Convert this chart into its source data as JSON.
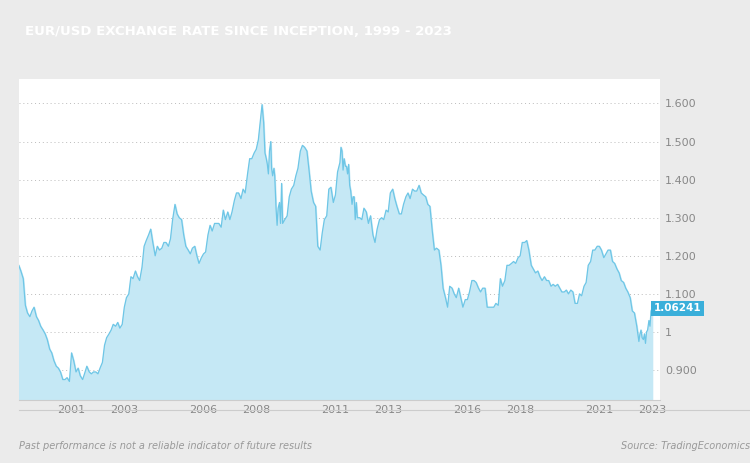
{
  "title": "EUR/USD EXCHANGE RATE SINCE INCEPTION, 1999 - 2023",
  "title_bg_color": "#8B6148",
  "title_text_color": "#FFFFFF",
  "last_value": "1.06241",
  "last_value_bg": "#3AAFDA",
  "last_value_text_color": "#FFFFFF",
  "line_color": "#6EC6E6",
  "fill_color": "#C5E8F5",
  "background_color": "#EBEBEB",
  "plot_bg_color": "#FFFFFF",
  "grid_color": "#BBBBBB",
  "tick_color": "#888888",
  "ylim": [
    0.82,
    1.665
  ],
  "yticks": [
    0.9,
    1.0,
    1.1,
    1.2,
    1.3,
    1.4,
    1.5,
    1.6
  ],
  "ytick_labels": [
    "0.900",
    "1",
    "1.100",
    "1.200",
    "1.300",
    "1.400",
    "1.500",
    "1.600"
  ],
  "source_text": "Source: TradingEconomics",
  "disclaimer_text": "Past performance is not a reliable indicator of future results",
  "x_tick_years": [
    2001,
    2003,
    2006,
    2008,
    2011,
    2013,
    2016,
    2018,
    2021,
    2023
  ],
  "data": [
    [
      1999.0,
      1.175
    ],
    [
      1999.08,
      1.16
    ],
    [
      1999.17,
      1.14
    ],
    [
      1999.25,
      1.07
    ],
    [
      1999.33,
      1.05
    ],
    [
      1999.42,
      1.04
    ],
    [
      1999.5,
      1.055
    ],
    [
      1999.58,
      1.065
    ],
    [
      1999.67,
      1.04
    ],
    [
      1999.75,
      1.03
    ],
    [
      1999.83,
      1.015
    ],
    [
      1999.92,
      1.005
    ],
    [
      2000.0,
      0.995
    ],
    [
      2000.08,
      0.98
    ],
    [
      2000.17,
      0.955
    ],
    [
      2000.25,
      0.945
    ],
    [
      2000.33,
      0.925
    ],
    [
      2000.42,
      0.91
    ],
    [
      2000.5,
      0.905
    ],
    [
      2000.58,
      0.895
    ],
    [
      2000.67,
      0.875
    ],
    [
      2000.75,
      0.875
    ],
    [
      2000.83,
      0.88
    ],
    [
      2000.92,
      0.87
    ],
    [
      2001.0,
      0.945
    ],
    [
      2001.08,
      0.925
    ],
    [
      2001.17,
      0.895
    ],
    [
      2001.25,
      0.905
    ],
    [
      2001.33,
      0.885
    ],
    [
      2001.42,
      0.875
    ],
    [
      2001.5,
      0.892
    ],
    [
      2001.58,
      0.91
    ],
    [
      2001.67,
      0.895
    ],
    [
      2001.75,
      0.89
    ],
    [
      2001.83,
      0.895
    ],
    [
      2001.92,
      0.895
    ],
    [
      2002.0,
      0.89
    ],
    [
      2002.08,
      0.905
    ],
    [
      2002.17,
      0.92
    ],
    [
      2002.25,
      0.965
    ],
    [
      2002.33,
      0.985
    ],
    [
      2002.42,
      0.995
    ],
    [
      2002.5,
      1.005
    ],
    [
      2002.58,
      1.02
    ],
    [
      2002.67,
      1.015
    ],
    [
      2002.75,
      1.025
    ],
    [
      2002.83,
      1.01
    ],
    [
      2002.92,
      1.02
    ],
    [
      2003.0,
      1.065
    ],
    [
      2003.08,
      1.09
    ],
    [
      2003.17,
      1.1
    ],
    [
      2003.25,
      1.145
    ],
    [
      2003.33,
      1.14
    ],
    [
      2003.42,
      1.16
    ],
    [
      2003.5,
      1.145
    ],
    [
      2003.58,
      1.135
    ],
    [
      2003.67,
      1.17
    ],
    [
      2003.75,
      1.225
    ],
    [
      2003.83,
      1.24
    ],
    [
      2003.92,
      1.255
    ],
    [
      2004.0,
      1.27
    ],
    [
      2004.08,
      1.235
    ],
    [
      2004.17,
      1.2
    ],
    [
      2004.25,
      1.225
    ],
    [
      2004.33,
      1.215
    ],
    [
      2004.42,
      1.22
    ],
    [
      2004.5,
      1.235
    ],
    [
      2004.58,
      1.235
    ],
    [
      2004.67,
      1.225
    ],
    [
      2004.75,
      1.245
    ],
    [
      2004.83,
      1.295
    ],
    [
      2004.92,
      1.335
    ],
    [
      2005.0,
      1.31
    ],
    [
      2005.08,
      1.3
    ],
    [
      2005.17,
      1.295
    ],
    [
      2005.25,
      1.255
    ],
    [
      2005.33,
      1.225
    ],
    [
      2005.42,
      1.215
    ],
    [
      2005.5,
      1.205
    ],
    [
      2005.58,
      1.22
    ],
    [
      2005.67,
      1.225
    ],
    [
      2005.75,
      1.2
    ],
    [
      2005.83,
      1.18
    ],
    [
      2005.92,
      1.195
    ],
    [
      2006.0,
      1.205
    ],
    [
      2006.08,
      1.21
    ],
    [
      2006.17,
      1.255
    ],
    [
      2006.25,
      1.28
    ],
    [
      2006.33,
      1.265
    ],
    [
      2006.42,
      1.285
    ],
    [
      2006.5,
      1.285
    ],
    [
      2006.58,
      1.285
    ],
    [
      2006.67,
      1.275
    ],
    [
      2006.75,
      1.32
    ],
    [
      2006.83,
      1.295
    ],
    [
      2006.92,
      1.315
    ],
    [
      2007.0,
      1.295
    ],
    [
      2007.08,
      1.315
    ],
    [
      2007.17,
      1.345
    ],
    [
      2007.25,
      1.365
    ],
    [
      2007.33,
      1.365
    ],
    [
      2007.42,
      1.35
    ],
    [
      2007.5,
      1.375
    ],
    [
      2007.58,
      1.365
    ],
    [
      2007.67,
      1.415
    ],
    [
      2007.75,
      1.455
    ],
    [
      2007.83,
      1.455
    ],
    [
      2007.92,
      1.47
    ],
    [
      2008.0,
      1.48
    ],
    [
      2008.08,
      1.505
    ],
    [
      2008.17,
      1.565
    ],
    [
      2008.22,
      1.597
    ],
    [
      2008.25,
      1.575
    ],
    [
      2008.28,
      1.55
    ],
    [
      2008.33,
      1.47
    ],
    [
      2008.38,
      1.455
    ],
    [
      2008.42,
      1.44
    ],
    [
      2008.46,
      1.415
    ],
    [
      2008.5,
      1.475
    ],
    [
      2008.55,
      1.5
    ],
    [
      2008.58,
      1.43
    ],
    [
      2008.62,
      1.41
    ],
    [
      2008.67,
      1.43
    ],
    [
      2008.7,
      1.41
    ],
    [
      2008.75,
      1.325
    ],
    [
      2008.79,
      1.28
    ],
    [
      2008.83,
      1.325
    ],
    [
      2008.88,
      1.34
    ],
    [
      2008.92,
      1.285
    ],
    [
      2008.96,
      1.39
    ],
    [
      2009.0,
      1.285
    ],
    [
      2009.08,
      1.295
    ],
    [
      2009.17,
      1.305
    ],
    [
      2009.25,
      1.355
    ],
    [
      2009.33,
      1.375
    ],
    [
      2009.42,
      1.385
    ],
    [
      2009.5,
      1.41
    ],
    [
      2009.58,
      1.43
    ],
    [
      2009.67,
      1.475
    ],
    [
      2009.75,
      1.49
    ],
    [
      2009.83,
      1.485
    ],
    [
      2009.92,
      1.475
    ],
    [
      2010.0,
      1.425
    ],
    [
      2010.08,
      1.37
    ],
    [
      2010.17,
      1.34
    ],
    [
      2010.25,
      1.33
    ],
    [
      2010.33,
      1.225
    ],
    [
      2010.42,
      1.215
    ],
    [
      2010.5,
      1.26
    ],
    [
      2010.58,
      1.295
    ],
    [
      2010.67,
      1.305
    ],
    [
      2010.75,
      1.375
    ],
    [
      2010.83,
      1.38
    ],
    [
      2010.92,
      1.34
    ],
    [
      2011.0,
      1.36
    ],
    [
      2011.08,
      1.42
    ],
    [
      2011.17,
      1.445
    ],
    [
      2011.21,
      1.485
    ],
    [
      2011.25,
      1.475
    ],
    [
      2011.29,
      1.425
    ],
    [
      2011.33,
      1.455
    ],
    [
      2011.38,
      1.435
    ],
    [
      2011.42,
      1.435
    ],
    [
      2011.46,
      1.415
    ],
    [
      2011.5,
      1.44
    ],
    [
      2011.54,
      1.385
    ],
    [
      2011.58,
      1.37
    ],
    [
      2011.63,
      1.335
    ],
    [
      2011.67,
      1.355
    ],
    [
      2011.71,
      1.355
    ],
    [
      2011.75,
      1.295
    ],
    [
      2011.79,
      1.34
    ],
    [
      2011.83,
      1.3
    ],
    [
      2011.92,
      1.3
    ],
    [
      2012.0,
      1.295
    ],
    [
      2012.08,
      1.325
    ],
    [
      2012.17,
      1.315
    ],
    [
      2012.25,
      1.285
    ],
    [
      2012.33,
      1.305
    ],
    [
      2012.42,
      1.255
    ],
    [
      2012.5,
      1.235
    ],
    [
      2012.58,
      1.27
    ],
    [
      2012.67,
      1.295
    ],
    [
      2012.75,
      1.3
    ],
    [
      2012.83,
      1.295
    ],
    [
      2012.92,
      1.32
    ],
    [
      2013.0,
      1.315
    ],
    [
      2013.08,
      1.365
    ],
    [
      2013.17,
      1.375
    ],
    [
      2013.25,
      1.35
    ],
    [
      2013.33,
      1.33
    ],
    [
      2013.42,
      1.31
    ],
    [
      2013.5,
      1.31
    ],
    [
      2013.58,
      1.335
    ],
    [
      2013.67,
      1.355
    ],
    [
      2013.75,
      1.365
    ],
    [
      2013.83,
      1.35
    ],
    [
      2013.92,
      1.375
    ],
    [
      2014.0,
      1.37
    ],
    [
      2014.08,
      1.37
    ],
    [
      2014.17,
      1.385
    ],
    [
      2014.25,
      1.365
    ],
    [
      2014.33,
      1.36
    ],
    [
      2014.42,
      1.355
    ],
    [
      2014.5,
      1.335
    ],
    [
      2014.58,
      1.33
    ],
    [
      2014.67,
      1.265
    ],
    [
      2014.75,
      1.215
    ],
    [
      2014.83,
      1.22
    ],
    [
      2014.92,
      1.215
    ],
    [
      2015.0,
      1.175
    ],
    [
      2015.08,
      1.115
    ],
    [
      2015.17,
      1.09
    ],
    [
      2015.25,
      1.065
    ],
    [
      2015.33,
      1.12
    ],
    [
      2015.42,
      1.115
    ],
    [
      2015.5,
      1.1
    ],
    [
      2015.58,
      1.09
    ],
    [
      2015.67,
      1.115
    ],
    [
      2015.75,
      1.09
    ],
    [
      2015.83,
      1.065
    ],
    [
      2015.92,
      1.085
    ],
    [
      2016.0,
      1.085
    ],
    [
      2016.08,
      1.105
    ],
    [
      2016.17,
      1.135
    ],
    [
      2016.25,
      1.135
    ],
    [
      2016.33,
      1.13
    ],
    [
      2016.42,
      1.115
    ],
    [
      2016.5,
      1.105
    ],
    [
      2016.58,
      1.115
    ],
    [
      2016.67,
      1.115
    ],
    [
      2016.75,
      1.065
    ],
    [
      2016.83,
      1.065
    ],
    [
      2016.92,
      1.065
    ],
    [
      2017.0,
      1.065
    ],
    [
      2017.08,
      1.075
    ],
    [
      2017.17,
      1.07
    ],
    [
      2017.25,
      1.14
    ],
    [
      2017.33,
      1.12
    ],
    [
      2017.42,
      1.135
    ],
    [
      2017.5,
      1.175
    ],
    [
      2017.58,
      1.175
    ],
    [
      2017.67,
      1.18
    ],
    [
      2017.75,
      1.185
    ],
    [
      2017.83,
      1.18
    ],
    [
      2017.92,
      1.195
    ],
    [
      2018.0,
      1.2
    ],
    [
      2018.08,
      1.235
    ],
    [
      2018.17,
      1.235
    ],
    [
      2018.25,
      1.24
    ],
    [
      2018.33,
      1.215
    ],
    [
      2018.42,
      1.175
    ],
    [
      2018.5,
      1.165
    ],
    [
      2018.58,
      1.155
    ],
    [
      2018.67,
      1.16
    ],
    [
      2018.75,
      1.145
    ],
    [
      2018.83,
      1.135
    ],
    [
      2018.92,
      1.145
    ],
    [
      2019.0,
      1.135
    ],
    [
      2019.08,
      1.135
    ],
    [
      2019.17,
      1.12
    ],
    [
      2019.25,
      1.125
    ],
    [
      2019.33,
      1.12
    ],
    [
      2019.42,
      1.125
    ],
    [
      2019.5,
      1.115
    ],
    [
      2019.58,
      1.105
    ],
    [
      2019.67,
      1.105
    ],
    [
      2019.75,
      1.11
    ],
    [
      2019.83,
      1.1
    ],
    [
      2019.92,
      1.11
    ],
    [
      2020.0,
      1.105
    ],
    [
      2020.08,
      1.075
    ],
    [
      2020.17,
      1.075
    ],
    [
      2020.25,
      1.1
    ],
    [
      2020.33,
      1.095
    ],
    [
      2020.42,
      1.12
    ],
    [
      2020.5,
      1.13
    ],
    [
      2020.58,
      1.175
    ],
    [
      2020.67,
      1.185
    ],
    [
      2020.75,
      1.215
    ],
    [
      2020.83,
      1.215
    ],
    [
      2020.92,
      1.225
    ],
    [
      2021.0,
      1.225
    ],
    [
      2021.08,
      1.215
    ],
    [
      2021.17,
      1.195
    ],
    [
      2021.25,
      1.205
    ],
    [
      2021.33,
      1.215
    ],
    [
      2021.42,
      1.215
    ],
    [
      2021.5,
      1.185
    ],
    [
      2021.58,
      1.18
    ],
    [
      2021.67,
      1.165
    ],
    [
      2021.75,
      1.155
    ],
    [
      2021.83,
      1.135
    ],
    [
      2021.92,
      1.13
    ],
    [
      2022.0,
      1.115
    ],
    [
      2022.08,
      1.105
    ],
    [
      2022.17,
      1.09
    ],
    [
      2022.25,
      1.055
    ],
    [
      2022.33,
      1.05
    ],
    [
      2022.42,
      1.015
    ],
    [
      2022.46,
      0.995
    ],
    [
      2022.5,
      0.975
    ],
    [
      2022.54,
      0.995
    ],
    [
      2022.58,
      1.005
    ],
    [
      2022.62,
      0.985
    ],
    [
      2022.67,
      0.98
    ],
    [
      2022.71,
      0.995
    ],
    [
      2022.75,
      0.97
    ],
    [
      2022.79,
      1.0
    ],
    [
      2022.83,
      1.005
    ],
    [
      2022.88,
      1.03
    ],
    [
      2022.92,
      1.015
    ],
    [
      2022.96,
      1.055
    ],
    [
      2023.0,
      1.06241
    ]
  ]
}
